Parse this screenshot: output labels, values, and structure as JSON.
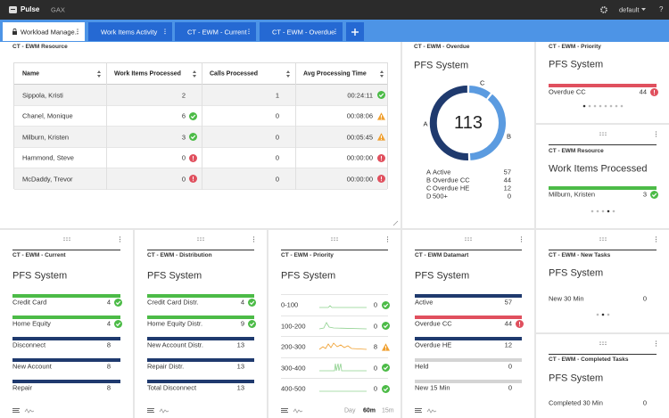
{
  "topbar": {
    "app": "Pulse",
    "nav": "GAX",
    "user": "default",
    "help": "?"
  },
  "tabs": [
    "Workload Manage..",
    "Work Items Activity",
    "CT - EWM - Current",
    "CT - EWM - Overdue"
  ],
  "resource_table": {
    "section": "CT - EWM Resource",
    "columns": [
      "Name",
      "Work Items Processed",
      "Calls Processed",
      "Avg Processing Time"
    ],
    "rows": [
      {
        "name": "Sippola, Kristi",
        "work_items": 2,
        "calls": 1,
        "avg_time": "00:24:11",
        "time_status": "ok"
      },
      {
        "name": "Chanel, Monique",
        "work_items": 6,
        "work_status": "ok",
        "calls": 0,
        "avg_time": "00:08:06",
        "time_status": "warn"
      },
      {
        "name": "Milburn, Kristen",
        "work_items": 3,
        "work_status": "ok",
        "calls": 0,
        "avg_time": "00:05:45",
        "time_status": "warn"
      },
      {
        "name": "Hammond, Steve",
        "work_items": 0,
        "work_status": "alert",
        "calls": 0,
        "avg_time": "00:00:00",
        "time_status": "alert"
      },
      {
        "name": "McDaddy, Trevor",
        "work_items": 0,
        "work_status": "alert",
        "calls": 0,
        "avg_time": "00:00:00",
        "time_status": "alert"
      }
    ]
  },
  "overdue_donut": {
    "section": "CT - EWM - Overdue",
    "title": "PFS System",
    "total": 113,
    "segments": [
      {
        "key": "A",
        "label": "Active",
        "value": 57,
        "color": "#1f3a6e"
      },
      {
        "key": "B",
        "label": "Overdue CC",
        "value": 44,
        "color": "#5b9be0"
      },
      {
        "key": "C",
        "label": "Overdue HE",
        "value": 12,
        "color": "#5b9be0"
      },
      {
        "key": "D",
        "label": "500+",
        "value": 0,
        "color": "#b0b0b0"
      }
    ]
  },
  "widgets": [
    {
      "section": "CT - EWM - Priority",
      "title": "PFS System",
      "items": [
        {
          "label": "Overdue CC",
          "value": 44,
          "status": "alert",
          "color": "#e0505e"
        }
      ]
    },
    {
      "section": "CT - EWM Resource",
      "title": "Work Items Processed",
      "items": [
        {
          "label": "Milburn, Kristen",
          "value": 3,
          "status": "ok",
          "color": "#4cbb47"
        }
      ]
    },
    {
      "section": "CT - EWM - Current",
      "title": "PFS System",
      "items": [
        {
          "label": "Credit Card",
          "value": 4,
          "status": "ok",
          "color": "#4cbb47"
        },
        {
          "label": "Home Equity",
          "value": 4,
          "status": "ok",
          "color": "#4cbb47"
        },
        {
          "label": "Disconnect",
          "value": 8,
          "color": "#1f3a6e"
        },
        {
          "label": "New Account",
          "value": 8,
          "color": "#1f3a6e"
        },
        {
          "label": "Repair",
          "value": 8,
          "color": "#1f3a6e"
        }
      ]
    },
    {
      "section": "CT - EWM - Distribution",
      "title": "PFS System",
      "items": [
        {
          "label": "Credit Card Distr.",
          "value": 4,
          "status": "ok",
          "color": "#4cbb47"
        },
        {
          "label": "Home Equity Distr.",
          "value": 9,
          "status": "ok",
          "color": "#4cbb47"
        },
        {
          "label": "New Account Distr.",
          "value": 13,
          "color": "#1f3a6e"
        },
        {
          "label": "Repair Distr.",
          "value": 13,
          "color": "#1f3a6e"
        },
        {
          "label": "Total Disconnect",
          "value": 13,
          "color": "#1f3a6e"
        }
      ]
    },
    {
      "section": "CT - EWM Datamart",
      "title": "PFS System",
      "items": [
        {
          "label": "Active",
          "value": 57,
          "color": "#1f3a6e"
        },
        {
          "label": "Overdue CC",
          "value": 44,
          "status": "alert",
          "color": "#e0505e"
        },
        {
          "label": "Overdue HE",
          "value": 12,
          "color": "#1f3a6e"
        },
        {
          "label": "Held",
          "value": 0,
          "color": "#d4d4d4"
        },
        {
          "label": "New 15 Min",
          "value": 0,
          "color": "#d4d4d4"
        }
      ]
    },
    {
      "section": "CT - EWM - New Tasks",
      "title": "PFS System",
      "items": [
        {
          "label": "New 30 Min",
          "value": 0
        }
      ]
    },
    {
      "section": "CT - EWM - Completed Tasks",
      "title": "PFS System",
      "items": [
        {
          "label": "Completed 30 Min",
          "value": 0
        }
      ]
    }
  ],
  "priority_trend": {
    "section": "CT - EWM - Priority",
    "title": "PFS System",
    "rows": [
      {
        "label": "0-100",
        "value": 0,
        "status": "ok"
      },
      {
        "label": "100-200",
        "value": 0,
        "status": "ok"
      },
      {
        "label": "200-300",
        "value": 8,
        "status": "warn"
      },
      {
        "label": "300-400",
        "value": 0,
        "status": "ok"
      },
      {
        "label": "400-500",
        "value": 0,
        "status": "ok"
      }
    ],
    "ranges": [
      "Day",
      "60m",
      "15m"
    ],
    "selected_range": 1
  }
}
